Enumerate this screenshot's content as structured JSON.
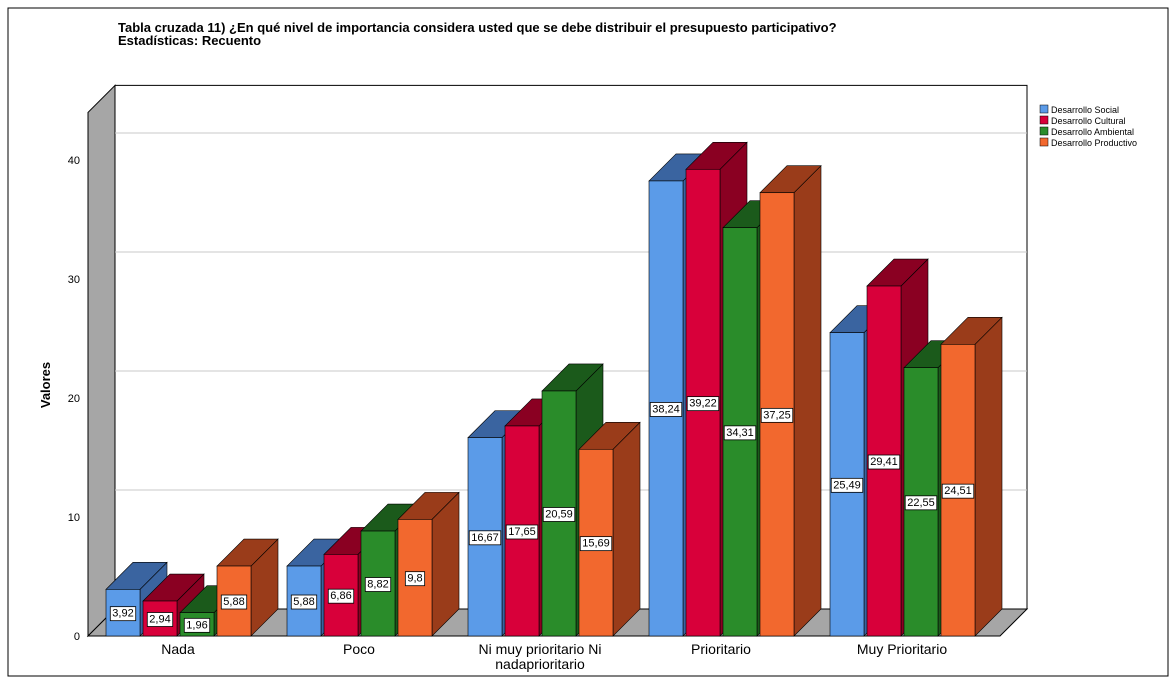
{
  "chart_data": {
    "type": "bar3d",
    "title": "Tabla cruzada 11) ¿En qué nivel de importancia considera usted que se debe distribuir el presupuesto participativo?",
    "subtitle": "Estadísticas: Recuento",
    "y_label": "Valores",
    "categories": [
      "Nada",
      "Poco",
      "Ni muy prioritario Ni nadaprioritario",
      "Prioritario",
      "Muy Prioritario"
    ],
    "series": [
      {
        "name": "Desarrollo Social",
        "color": "#5b9be8",
        "side": "#3a64a0",
        "values": [
          3.92,
          5.88,
          16.67,
          38.24,
          25.49
        ],
        "value_labels": [
          "3,92",
          "5,88",
          "16,67",
          "38,24",
          "25,49"
        ]
      },
      {
        "name": "Desarrollo Cultural",
        "color": "#d8003a",
        "side": "#8a0022",
        "values": [
          2.94,
          6.86,
          17.65,
          39.22,
          29.41
        ],
        "value_labels": [
          "2,94",
          "6,86",
          "17,65",
          "39,22",
          "29,41"
        ]
      },
      {
        "name": "Desarrollo Ambiental",
        "color": "#2a8c2a",
        "side": "#1b5a1b",
        "values": [
          1.96,
          8.82,
          20.59,
          34.31,
          22.55
        ],
        "value_labels": [
          "1,96",
          "8,82",
          "20,59",
          "34,31",
          "22,55"
        ]
      },
      {
        "name": "Desarrollo Productivo",
        "color": "#f2682e",
        "side": "#9a3c1a",
        "values": [
          5.88,
          9.8,
          15.69,
          37.25,
          24.51
        ],
        "value_labels": [
          "5,88",
          "9,8",
          "15,69",
          "37,25",
          "24,51"
        ]
      }
    ],
    "ylim": [
      0,
      44
    ],
    "yticks": [
      0,
      10,
      20,
      30,
      40
    ],
    "grid": true,
    "legend": "right"
  }
}
